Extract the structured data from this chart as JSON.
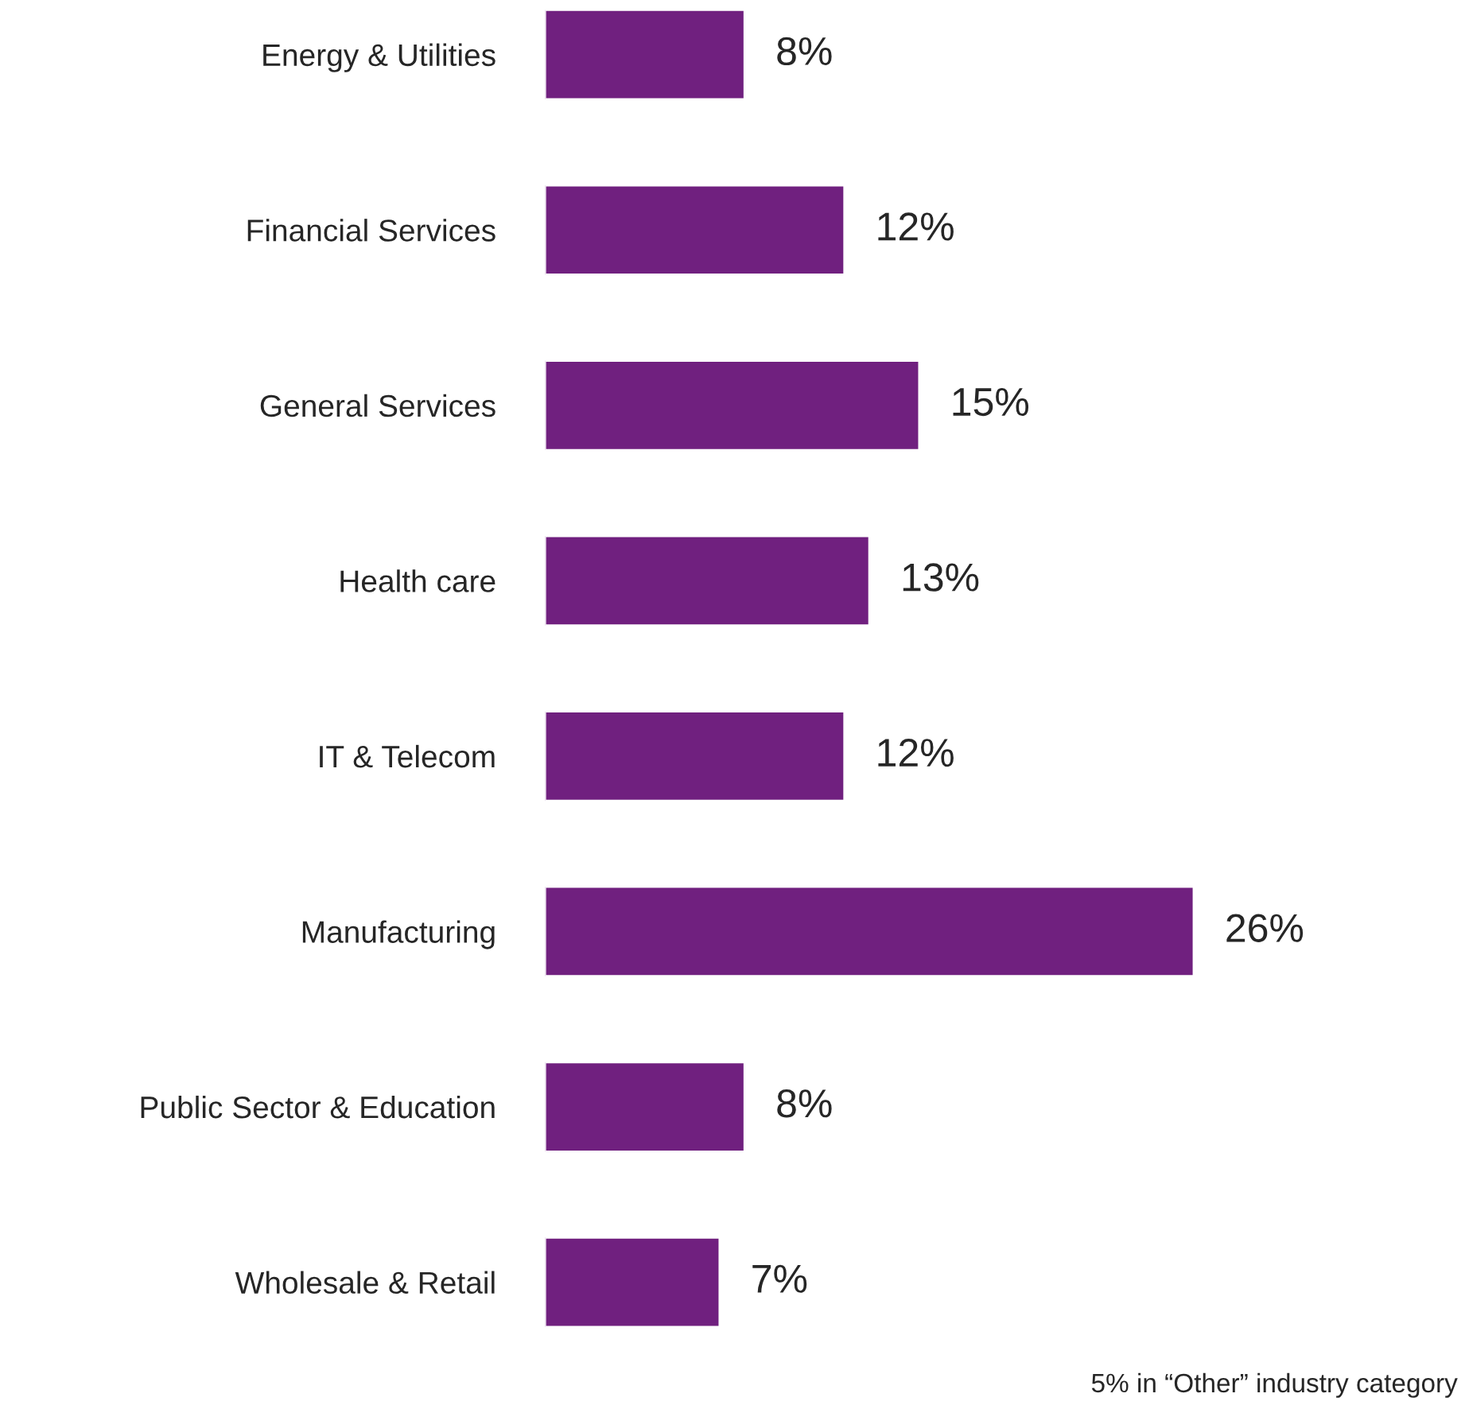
{
  "chart_data": {
    "type": "bar",
    "orientation": "horizontal",
    "categories": [
      "Energy & Utilities",
      "Financial Services",
      "General Services",
      "Health care",
      "IT & Telecom",
      "Manufacturing",
      "Public Sector & Education",
      "Wholesale & Retail"
    ],
    "values": [
      8,
      12,
      15,
      13,
      12,
      26,
      8,
      7
    ],
    "value_labels": [
      "8%",
      "12%",
      "15%",
      "13%",
      "12%",
      "26%",
      "8%",
      "7%"
    ],
    "color": "#70207f",
    "grid": false,
    "legend": false,
    "annotations": [
      "5% in “Other” industry category"
    ]
  }
}
